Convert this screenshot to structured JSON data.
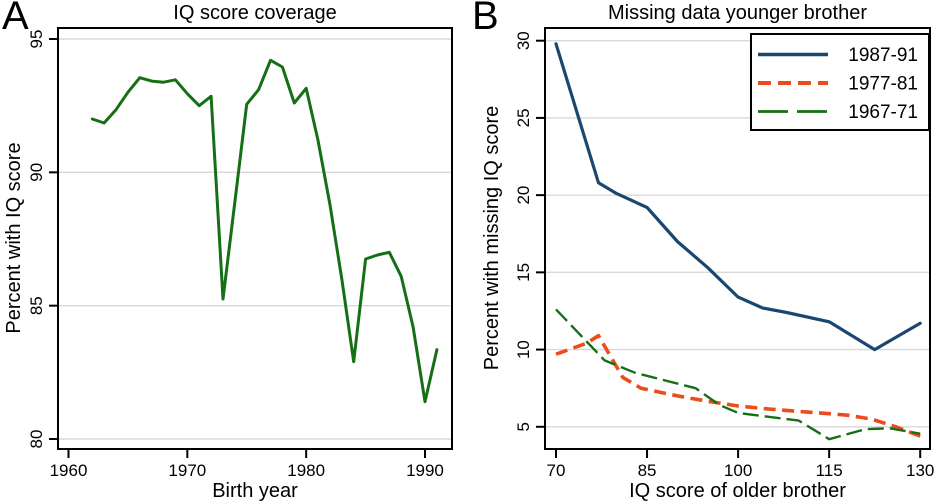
{
  "figure_caption": "Two-panel line figure",
  "chart_data": [
    {
      "type": "line",
      "letter": "A",
      "title": "IQ score coverage",
      "xlabel": "Birth year",
      "ylabel": "Percent with IQ score",
      "x_ticks": [
        1960,
        1970,
        1980,
        1990
      ],
      "y_ticks": [
        80,
        85,
        90,
        95
      ],
      "xlim": [
        1959.1,
        1992.3
      ],
      "ylim": [
        79.6,
        95.4
      ],
      "grid": "horizontal-gray",
      "legend": null,
      "series": [
        {
          "name": "Percent with IQ score",
          "color": "#166e16",
          "dash": "solid",
          "width": 3,
          "x": [
            1962,
            1963,
            1964,
            1965,
            1966,
            1967,
            1968,
            1969,
            1970,
            1971,
            1972,
            1973,
            1974,
            1975,
            1976,
            1977,
            1978,
            1979,
            1980,
            1981,
            1982,
            1983,
            1984,
            1985,
            1986,
            1987,
            1988,
            1989,
            1990,
            1991
          ],
          "y": [
            92.0,
            91.85,
            92.35,
            93.0,
            93.55,
            93.42,
            93.38,
            93.47,
            92.95,
            92.5,
            92.85,
            85.25,
            88.9,
            92.55,
            93.1,
            94.2,
            93.95,
            92.6,
            93.15,
            91.2,
            88.8,
            86.0,
            82.9,
            86.75,
            86.9,
            87.0,
            86.1,
            84.2,
            81.4,
            83.35
          ]
        }
      ]
    },
    {
      "type": "line",
      "letter": "B",
      "title": "Missing data younger brother",
      "xlabel": "IQ score of older brother",
      "ylabel": "Percent with missing IQ score",
      "x_ticks": [
        70,
        85,
        100,
        115,
        130
      ],
      "y_ticks": [
        5,
        10,
        15,
        20,
        25,
        30
      ],
      "xlim": [
        68,
        132
      ],
      "ylim": [
        3.6,
        30.8
      ],
      "grid": "horizontal-gray",
      "legend": {
        "position": "top-right",
        "order": [
          "1987-91",
          "1977-81",
          "1967-71"
        ]
      },
      "series": [
        {
          "name": "1987-91",
          "color": "#1a476f",
          "dash": "solid",
          "legend_dash": "solid",
          "width": 3.2,
          "x": [
            70,
            77,
            80,
            85,
            90,
            95,
            100,
            104,
            108,
            115,
            122.5,
            130
          ],
          "y": [
            29.8,
            20.8,
            20.1,
            19.2,
            17.0,
            15.3,
            13.4,
            12.7,
            12.4,
            11.8,
            10.0,
            11.7
          ]
        },
        {
          "name": "1977-81",
          "color": "#ec4c1c",
          "dash": "12 6.5",
          "legend_dash": "13 7",
          "width": 3.6,
          "x": [
            70,
            75,
            77,
            81,
            84,
            90,
            95,
            100,
            105,
            110,
            115,
            118,
            122,
            126,
            130
          ],
          "y": [
            9.7,
            10.4,
            10.9,
            8.2,
            7.5,
            7.0,
            6.65,
            6.35,
            6.15,
            6.0,
            5.85,
            5.75,
            5.5,
            5.0,
            4.4
          ]
        },
        {
          "name": "1967-71",
          "color": "#166e16",
          "dash": "16 6",
          "legend_dash": "30 9",
          "width": 2.4,
          "x": [
            70,
            78,
            83,
            88,
            93,
            97,
            100,
            105,
            110,
            115,
            121,
            125,
            130
          ],
          "y": [
            12.6,
            9.3,
            8.5,
            8.0,
            7.5,
            6.4,
            5.9,
            5.65,
            5.4,
            4.2,
            4.85,
            4.9,
            4.55
          ]
        }
      ]
    }
  ],
  "style": {
    "grid_color": "#d9d9d9",
    "axis_color": "#000000",
    "background": "#ffffff"
  }
}
